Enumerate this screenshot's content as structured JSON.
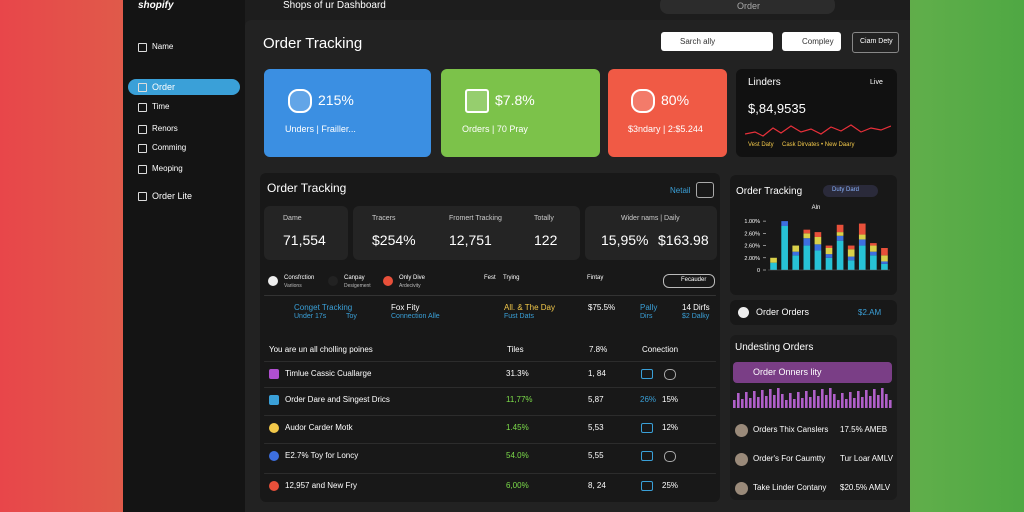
{
  "header": {
    "brand": "shopify",
    "title": "Shops of ur Dashboard",
    "search": "Order"
  },
  "sidebar": {
    "items": [
      "Name",
      "Order",
      "Time",
      "Renors",
      "Comming",
      "Meoping",
      "Order Lite"
    ]
  },
  "page": {
    "title": "Order Tracking",
    "search": "Sarch ally",
    "buttons": [
      "Compley",
      "Ciam Dety"
    ]
  },
  "cards": [
    {
      "value": "215%",
      "label": "Unders | Frailler..."
    },
    {
      "value": "$7.8%",
      "label": "Orders | 70 Pray"
    },
    {
      "value": "80%",
      "label": "$3ndary | 2:$5.244"
    }
  ],
  "live": {
    "title": "Linders",
    "badge": "Live",
    "value": "$,84,9535",
    "legend": [
      "Vest Daty",
      "Cask Dirvates • New Daary"
    ]
  },
  "tracking": {
    "title": "Order Tracking",
    "link": "Netail",
    "stats": [
      {
        "label": "Dame",
        "value": "71,554"
      },
      {
        "label": "Tracers",
        "value": "$254%"
      },
      {
        "label": "Fromert Tracking",
        "value": "12,751"
      },
      {
        "label": "Totally",
        "value": "122"
      },
      {
        "label": "Wider nams | Daily",
        "value": "15,95%",
        "extra": "$163.98"
      }
    ],
    "filters": [
      [
        "Consfrction",
        "Variions"
      ],
      [
        "Canpay",
        "Desigement"
      ],
      [
        "Only Dive",
        "Ardecivity"
      ],
      [
        "Fest"
      ],
      [
        "Trying"
      ],
      [
        "Fintay"
      ]
    ],
    "filter_button": "Fecauder",
    "highlights": [
      [
        "Conget Tracking",
        "Under 17s",
        "Toy"
      ],
      [
        "Fox Fity",
        "Connection Alle"
      ],
      [
        "All. & The Day",
        "Fust Dats"
      ],
      [
        "$75.5%"
      ],
      [
        "Pally",
        "Dirs"
      ],
      [
        "14 Dirfs",
        "$2 Dalky"
      ]
    ],
    "table": {
      "header": [
        "You are un all cholling poines",
        "Tiles",
        "7.8%",
        "Conection"
      ],
      "rows": [
        {
          "name": "Timlue Cassic Cuallarge",
          "pct": "31.3%",
          "count": "1, 84"
        },
        {
          "name": "Order Dare and Singest Drics",
          "pct": "11,77%",
          "count": "5,87",
          "conn": "26%",
          "extra": "15%"
        },
        {
          "name": "Audor Carder Motk",
          "pct": "1.45%",
          "count": "5,53",
          "extra": "12%"
        },
        {
          "name": "E2.7% Toy for Loncy",
          "pct": "54.0%",
          "count": "5,55"
        },
        {
          "name": "12,957 and New Fry",
          "pct": "6,00%",
          "count": "8, 24",
          "extra": "25%"
        }
      ]
    }
  },
  "side_chart": {
    "title": "Order Tracking",
    "badge": "Duty Dard",
    "chart_data": {
      "type": "bar",
      "stacked": true,
      "ylabel": "Aln",
      "categories": [
        null,
        null,
        null,
        null,
        null,
        null,
        null,
        null,
        null,
        null,
        null
      ],
      "series": [
        {
          "color": "#27c2d6",
          "values": [
            0.6,
            3.6,
            1.2,
            2.0,
            1.6,
            1.0,
            2.4,
            0.8,
            2.0,
            1.2,
            0.5
          ]
        },
        {
          "color": "#3d6fe0",
          "values": [
            0,
            0.4,
            0.3,
            0.6,
            0.5,
            0.3,
            0.4,
            0.3,
            0.5,
            0.3,
            0.2
          ]
        },
        {
          "color": "#d9d04a",
          "values": [
            0.4,
            0,
            0.5,
            0.4,
            0.6,
            0.5,
            0.3,
            0.6,
            0.4,
            0.5,
            0.5
          ]
        },
        {
          "color": "#e8503a",
          "values": [
            0,
            0,
            0,
            0.3,
            0.4,
            0.2,
            0.6,
            0.3,
            0.9,
            0.2,
            0.6
          ]
        }
      ],
      "ylim": [
        0,
        4.5
      ],
      "yticks": [
        0,
        {
          "value": 1,
          "label": "2.00%"
        },
        {
          "value": 2,
          "label": "2.60%"
        },
        {
          "value": 3,
          "label": "2.60%"
        },
        {
          "value": 4,
          "label": "1.00%"
        }
      ]
    }
  },
  "orders": {
    "title": "Order Orders",
    "value": "$2.AM"
  },
  "undesting": {
    "title": "Undesting Orders",
    "highlight": "Order Onners lity",
    "items": [
      [
        "Orders Thix Canslers",
        "17.5% AMEB"
      ],
      [
        "Order's For Caumtty",
        "Tur Loar AMLV"
      ],
      [
        "Take Linder Contany",
        "$20.5% AMLV"
      ]
    ]
  }
}
